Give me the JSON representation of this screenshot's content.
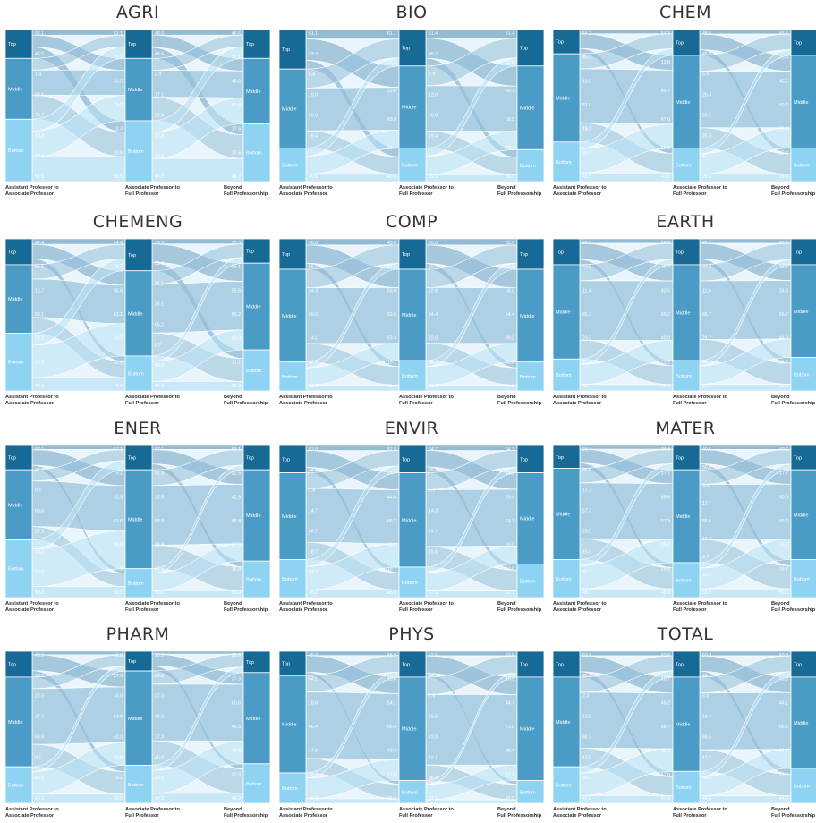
{
  "levels": [
    "Top",
    "Middle",
    "Bottom"
  ],
  "captions": {
    "col1": [
      "Assistant Professor to",
      "Associate Professor"
    ],
    "col2": [
      "Associate Professor to",
      "Full Professor"
    ],
    "col3": [
      "Beyond",
      "Full Professorship"
    ]
  },
  "colors": {
    "top_bar": "#176a96",
    "middle_bar": "#4a9cc6",
    "bottom_bar": "#8fd3f3",
    "flow_top": "#6da3c2",
    "flow_middle": "#93c0da",
    "flow_bottom": "#b9e2f5",
    "label": "#ffffff"
  },
  "chart_data": [
    {
      "type": "sankey",
      "title": "AGRI",
      "stage1": [
        19.0,
        40.0,
        41.0
      ],
      "stage2": [
        19.0,
        41.0,
        40.0
      ],
      "stage3": [
        19.0,
        43.0,
        38.0
      ],
      "labels1": [
        "52.1",
        "46.5",
        "1.4",
        "38.1",
        "73.7",
        "10.3",
        "33.8",
        "56.5"
      ],
      "labels2": [
        "52.1",
        "18.1",
        "46.5",
        "73.7",
        "10.3",
        "33.8",
        "56.5"
      ],
      "labels3": [
        "48.6",
        "48.6",
        "2.9",
        "17.1",
        "65.4",
        "17.5",
        "36.1",
        "46.7"
      ],
      "labels4": [
        "48.6",
        "17.1",
        "48.6",
        "65.4",
        "17.5",
        "17.5",
        "46.7"
      ]
    },
    {
      "type": "sankey",
      "title": "BIO",
      "stage1": [
        26.0,
        52.0,
        22.0
      ],
      "stage2": [
        24.0,
        54.0,
        22.0
      ],
      "stage3": [
        24.0,
        55.0,
        21.0
      ],
      "labels1": [
        "61.1",
        "33.3",
        "5.6",
        "19.0",
        "69.9",
        "19.4",
        "1.7",
        "40.6"
      ],
      "labels2": [
        "61.1",
        "33.3",
        "19.0",
        "69.9",
        "19.4",
        "40.6"
      ],
      "labels3": [
        "51.4",
        "45.7",
        "2.9",
        "12.8",
        "69.8",
        "19.4",
        "10.8",
        "39.9"
      ],
      "labels4": [
        "51.4",
        "12.8",
        "45.7",
        "69.9",
        "19.4",
        "39.9"
      ]
    },
    {
      "type": "sankey",
      "title": "CHEM",
      "stage1": [
        16.0,
        58.0,
        26.0
      ],
      "stage2": [
        17.0,
        61.0,
        22.0
      ],
      "stage3": [
        17.0,
        61.0,
        22.0
      ],
      "labels1": [
        "54.3",
        "45.7",
        "13.8",
        "67.0",
        "19.1",
        "30.6",
        "41.0"
      ],
      "labels2": [
        "54.3",
        "13.8",
        "45.7",
        "67.0",
        "19.1",
        "41.0"
      ],
      "labels3": [
        "48.6",
        "45.5",
        "5.9",
        "25.4",
        "59.2",
        "25.4",
        "45.2",
        "29.4"
      ],
      "labels4": [
        "45.5",
        "25.4",
        "45.5",
        "59.2",
        "29.4",
        "20.4",
        "29.4"
      ]
    },
    {
      "type": "sankey",
      "title": "CHEMENG",
      "stage1": [
        17.0,
        45.0,
        38.0
      ],
      "stage2": [
        21.0,
        56.0,
        23.0
      ],
      "stage3": [
        16.0,
        57.0,
        27.0
      ],
      "labels1": [
        "44.4",
        "55.6",
        "10.7",
        "63.1",
        "22.2",
        "16.7",
        "40.6"
      ],
      "labels2": [
        "44.4",
        "16.7",
        "55.6",
        "63.1",
        "40.7",
        "22.2",
        "40.6"
      ],
      "labels3": [
        "33.3",
        "55.6",
        "11.1",
        "26.1",
        "65.2",
        "8.7",
        "40.0",
        "60.0"
      ],
      "labels4": [
        "33.3",
        "26.1",
        "55.6",
        "65.2",
        "40.0",
        "11.1",
        "60.0"
      ]
    },
    {
      "type": "sankey",
      "title": "COMP",
      "stage1": [
        20.0,
        61.0,
        19.0
      ],
      "stage2": [
        20.0,
        60.0,
        20.0
      ],
      "stage3": [
        20.0,
        61.0,
        19.0
      ],
      "labels1": [
        "45.0",
        "55.0",
        "34.3",
        "69.6",
        "14.1",
        "32.5",
        "52.4"
      ],
      "labels2": [
        "45.0",
        "14.3",
        "55.0",
        "69.6",
        "53.3",
        "15.1",
        "52.4"
      ],
      "labels3": [
        "35.0",
        "65.0",
        "22.8",
        "54.4",
        "22.8",
        "66.0",
        "39.2"
      ],
      "labels4": [
        "35.0",
        "22.8",
        "65.0",
        "54.4",
        "39.2",
        "22.8",
        "39.2"
      ]
    },
    {
      "type": "sankey",
      "title": "EARTH",
      "stage1": [
        17.0,
        62.0,
        21.0
      ],
      "stage2": [
        17.0,
        63.0,
        20.0
      ],
      "stage3": [
        17.0,
        61.0,
        22.0
      ],
      "labels1": [
        "56.5",
        "43.5",
        "11.4",
        "65.2",
        "23.2",
        "30.4",
        "46.4"
      ],
      "labels2": [
        "56.5",
        "11.4",
        "43.5",
        "65.2",
        "40.0",
        "23.2",
        "46.4"
      ],
      "labels3": [
        "65.2",
        "34.8",
        "11.6",
        "66.7",
        "21.7",
        "65.2",
        "39.3"
      ],
      "labels4": [
        "65.2",
        "11.6",
        "34.8",
        "66.7",
        "44.3",
        "21.7",
        "39.3"
      ]
    },
    {
      "type": "sankey",
      "title": "ENER",
      "stage1": [
        16.0,
        46.0,
        38.0
      ],
      "stage2": [
        16.0,
        65.0,
        19.0
      ],
      "stage3": [
        16.0,
        60.0,
        24.0
      ],
      "labels1": [
        "57.1",
        "42.9",
        "9.1",
        "63.6",
        "27.3",
        "33.3",
        "50.0",
        "50.0"
      ],
      "labels2": [
        "57.1",
        "9.1",
        "42.9",
        "63.6",
        "50.0",
        "27.3",
        "50.0"
      ],
      "labels3": [
        "57.1",
        "42.9",
        "12.5",
        "68.8",
        "18.8",
        "37.5",
        "50.0"
      ],
      "labels4": [
        "57.1",
        "12.5",
        "42.9",
        "68.8",
        "37.5",
        "18.8",
        "50.0"
      ]
    },
    {
      "type": "sankey",
      "title": "ENVIR",
      "stage1": [
        18.0,
        57.0,
        25.0
      ],
      "stage2": [
        18.0,
        62.0,
        20.0
      ],
      "stage3": [
        18.0,
        60.0,
        22.0
      ],
      "labels1": [
        "52.8",
        "44.4",
        "2.8",
        "14.7",
        "66.7",
        "18.7",
        "33.3",
        "48.0"
      ],
      "labels2": [
        "52.8",
        "14.7",
        "44.4",
        "66.7",
        "33.3",
        "18.7",
        "48.0"
      ],
      "labels3": [
        "64.7",
        "29.4",
        "5.9",
        "14.3",
        "74.7",
        "11.0",
        "30.8",
        "57.1"
      ],
      "labels4": [
        "64.7",
        "14.3",
        "29.4",
        "74.7",
        "30.8",
        "11.0",
        "57.1"
      ]
    },
    {
      "type": "sankey",
      "title": "MATER",
      "stage1": [
        15.0,
        60.0,
        25.0
      ],
      "stage2": [
        16.0,
        61.0,
        23.0
      ],
      "stage3": [
        16.0,
        59.0,
        25.0
      ],
      "labels1": [
        "34.4",
        "65.6",
        "17.7",
        "57.3",
        "25.0",
        "15.6",
        "36.2",
        "48.4"
      ],
      "labels2": [
        "34.4",
        "17.7",
        "65.6",
        "57.3",
        "25.0",
        "25.0",
        "48.4"
      ],
      "labels3": [
        "40.6",
        "50.0",
        "9.4",
        "17.7",
        "65.6",
        "16.7",
        "9.7",
        "33.3",
        "50.0"
      ],
      "labels4": [
        "40.6",
        "17.7",
        "50.0",
        "65.6",
        "16.7",
        "16.7",
        "50.0"
      ]
    },
    {
      "type": "sankey",
      "title": "PHARM",
      "stage1": [
        17.0,
        59.0,
        24.0
      ],
      "stage2": [
        13.0,
        62.0,
        25.0
      ],
      "stage3": [
        14.0,
        60.0,
        26.0
      ],
      "labels1": [
        "40.0",
        "40.0",
        "20.0",
        "27.3",
        "63.6",
        "9.1",
        "50.0",
        "20.0"
      ],
      "labels2": [
        "40.0",
        "27.3",
        "40.0",
        "63.6",
        "40.0",
        "20.0",
        "9.1",
        "20.0"
      ],
      "labels3": [
        "20.0",
        "80.0",
        "27.3",
        "45.5",
        "27.3",
        "40.0",
        "20.0",
        "40.0"
      ],
      "labels4": [
        "20.0",
        "27.3",
        "80.0",
        "45.5",
        "40.0",
        "27.3",
        "40.0"
      ]
    },
    {
      "type": "sankey",
      "title": "PHYS",
      "stage1": [
        16.0,
        64.0,
        20.0
      ],
      "stage2": [
        17.0,
        68.0,
        15.0
      ],
      "stage3": [
        17.0,
        68.0,
        15.0
      ],
      "labels1": [
        "45.9",
        "54.1",
        "10.6",
        "66.4",
        "17.9",
        "32.8",
        "49.3"
      ],
      "labels2": [
        "45.9",
        "10.6",
        "54.1",
        "66.4",
        "49.3",
        "17.9",
        "49.3"
      ],
      "labels3": [
        "52.6",
        "44.7",
        "2.6",
        "15.9",
        "72.0",
        "12.1",
        "36.4",
        "51.5"
      ],
      "labels4": [
        "52.6",
        "15.9",
        "44.7",
        "72.0",
        "36.4",
        "12.1",
        "51.5"
      ]
    },
    {
      "type": "sankey",
      "title": "TOTAL",
      "stage1": [
        17.0,
        59.0,
        24.0
      ],
      "stage2": [
        17.0,
        62.0,
        21.0
      ],
      "stage3": [
        17.0,
        60.0,
        23.0
      ],
      "labels1": [
        "52.6",
        "45.2",
        "2.3",
        "13.5",
        "68.7",
        "17.8",
        "35.2",
        "47.0"
      ],
      "labels2": [
        "52.6",
        "13.7",
        "45.2",
        "68.7",
        "35.2",
        "17.6",
        "47.0"
      ],
      "labels3": [
        "50.8",
        "44.1",
        "5.0",
        "16.3",
        "66.5",
        "17.2",
        "38.3",
        "44.6"
      ],
      "labels4": [
        "50.8",
        "16.3",
        "44.1",
        "66.5",
        "44.6",
        "17.2",
        "44.6"
      ]
    }
  ]
}
